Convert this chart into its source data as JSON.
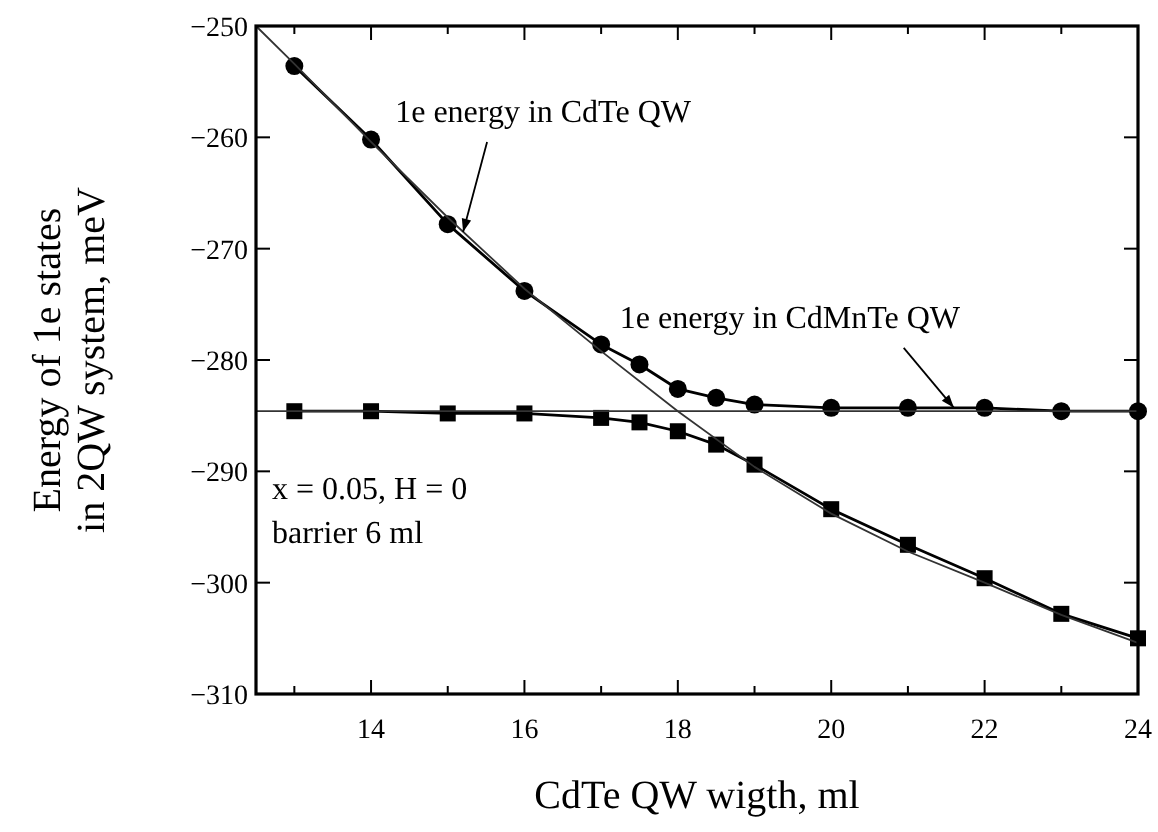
{
  "chart_data": {
    "type": "line",
    "xlabel": "CdTe QW wigth, ml",
    "ylabel": "Energy of 1e states\nin 2QW system, meV",
    "x": [
      13,
      14,
      15,
      16,
      17,
      17.5,
      18,
      18.5,
      19,
      20,
      21,
      22,
      23,
      24
    ],
    "series": [
      {
        "color": "#000000",
        "marker": "circle",
        "values": [
          -253.6,
          -260.2,
          -267.8,
          -273.8,
          -278.6,
          -280.4,
          -282.6,
          -283.4,
          -284.0,
          -284.3,
          -284.3,
          -284.3,
          -284.6,
          -284.6
        ]
      },
      {
        "color": "#000000",
        "marker": "square",
        "values": [
          -284.6,
          -284.6,
          -284.8,
          -284.8,
          -285.2,
          -285.6,
          -286.4,
          -287.6,
          -289.4,
          -293.4,
          -296.6,
          -299.6,
          -302.8,
          -305.0
        ]
      },
      {
        "color": "#333333",
        "marker": "none",
        "x": [
          12.5,
          13,
          14,
          15,
          16,
          17,
          18,
          19,
          20,
          21,
          22,
          23,
          24
        ],
        "values": [
          -250,
          -253.4,
          -260.4,
          -267.2,
          -273.6,
          -279.2,
          -284.6,
          -289.6,
          -293.8,
          -297.2,
          -300.0,
          -302.9,
          -305.4
        ]
      },
      {
        "color": "#333333",
        "marker": "none",
        "x": [
          12.5,
          24
        ],
        "values": [
          -284.6,
          -284.6
        ]
      }
    ],
    "annotations": [
      {
        "text": "1e energy in CdTe QW",
        "x": 15.2,
        "y": -268.5
      },
      {
        "text": "1e energy in CdMnTe QW",
        "x": 21.6,
        "y": -284.3
      },
      "x = 0.05, H = 0",
      "barrier 6 ml"
    ],
    "xlim": [
      12.5,
      24
    ],
    "xticks": [
      {
        "value": 13,
        "label": null
      },
      14,
      {
        "value": 15,
        "label": null
      },
      16,
      {
        "value": 17,
        "label": null
      },
      18,
      {
        "value": 19,
        "label": null
      },
      20,
      {
        "value": 21,
        "label": null
      },
      22,
      {
        "value": 23,
        "label": null
      },
      24
    ],
    "ylim": [
      -310,
      -250
    ],
    "yticks": [
      -310,
      -300,
      -290,
      -280,
      -270,
      -260,
      -250
    ]
  }
}
